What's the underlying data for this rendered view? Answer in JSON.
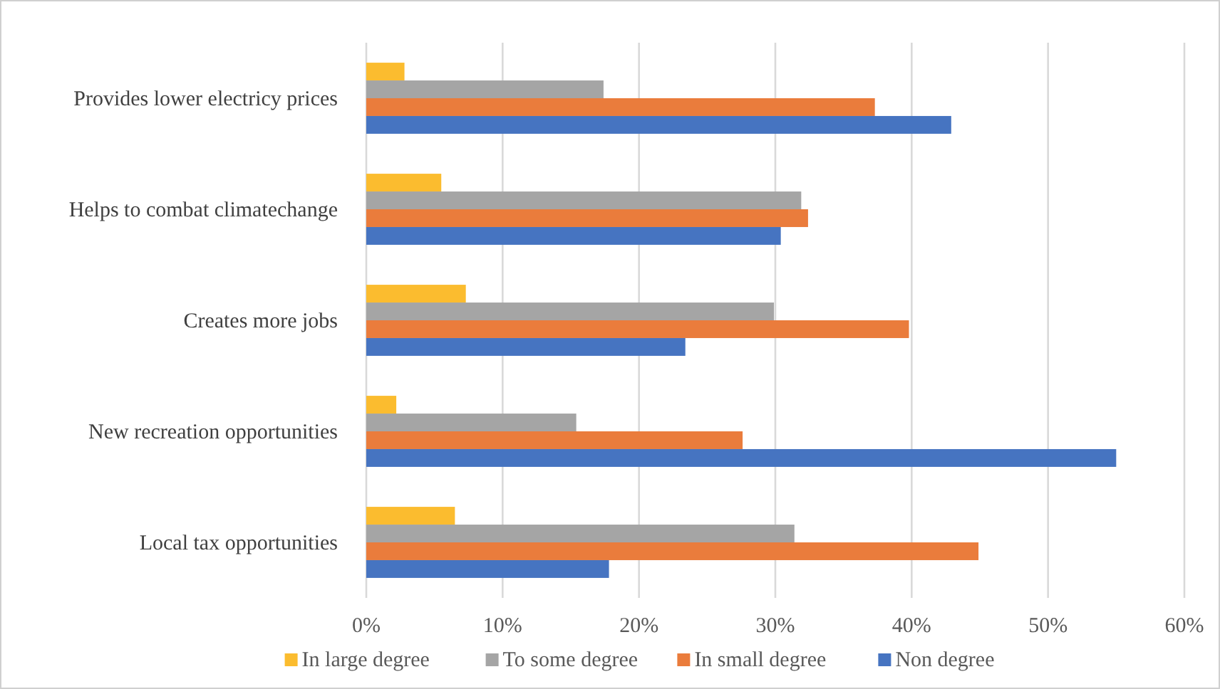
{
  "chart_data": {
    "type": "bar",
    "orientation": "horizontal",
    "categories": [
      "Provides lower electricy prices",
      "Helps to combat climatechange",
      "Creates more jobs",
      "New recreation opportunities",
      "Local tax opportunities"
    ],
    "series": [
      {
        "name": "In large degree",
        "color": "#fbbc2f",
        "values": [
          2.8,
          5.5,
          7.3,
          2.2,
          6.5
        ]
      },
      {
        "name": "To some degree",
        "color": "#a5a5a5",
        "values": [
          17.4,
          31.9,
          29.9,
          15.4,
          31.4
        ]
      },
      {
        "name": "In small degree",
        "color": "#ea7c3c",
        "values": [
          37.3,
          32.4,
          39.8,
          27.6,
          44.9
        ]
      },
      {
        "name": "Non degree",
        "color": "#4674c1",
        "values": [
          42.9,
          30.4,
          23.4,
          55.0,
          17.8
        ]
      }
    ],
    "xlim": [
      0,
      60
    ],
    "xticks": [
      {
        "value": 0,
        "label": "0%"
      },
      {
        "value": 10,
        "label": "10%"
      },
      {
        "value": 20,
        "label": "20%"
      },
      {
        "value": 30,
        "label": "30%"
      },
      {
        "value": 40,
        "label": "40%"
      },
      {
        "value": 50,
        "label": "50%"
      },
      {
        "value": 60,
        "label": "60%"
      }
    ],
    "grid": "x",
    "legend": "bottom"
  }
}
